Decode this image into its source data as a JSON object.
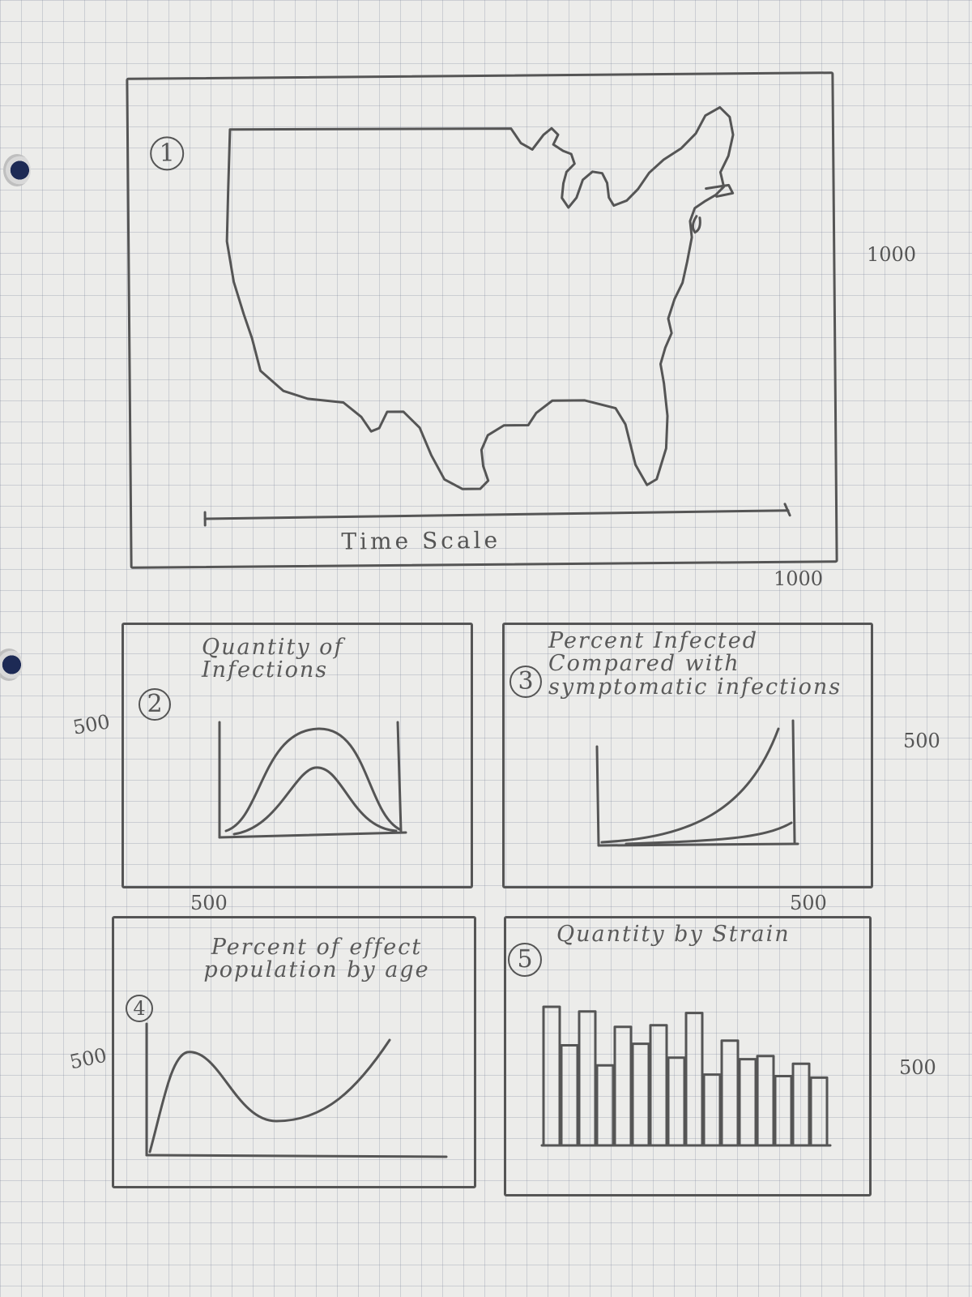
{
  "panel1": {
    "number": "1",
    "timeline_label": "Time  Scale",
    "width_label": "1000",
    "height_label": "1000",
    "map_icon": "usa-map-icon"
  },
  "panel2": {
    "number": "2",
    "title": "Quantity of Infections",
    "width_label": "500",
    "height_label": "500"
  },
  "panel3": {
    "number": "3",
    "title": "Percent Infected Compared with symptomatic infections",
    "width_label": "500",
    "height_label": "500"
  },
  "panel4": {
    "number": "4",
    "title": "Percent of effect population by age",
    "height_label": "500"
  },
  "panel5": {
    "number": "5",
    "title": "Quantity by Strain",
    "height_label": "500",
    "bar_levels": [
      0.9,
      0.65,
      0.87,
      0.52,
      0.77,
      0.66,
      0.78,
      0.57,
      0.86,
      0.46,
      0.68,
      0.56,
      0.58,
      0.45,
      0.53,
      0.44
    ]
  }
}
